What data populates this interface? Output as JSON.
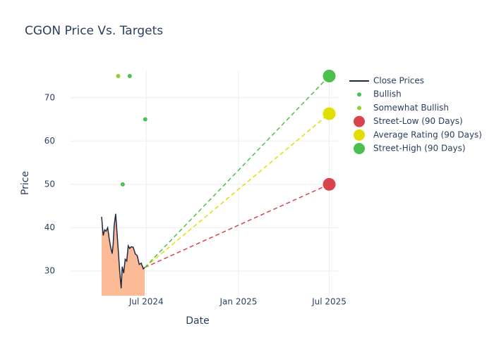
{
  "chart_data": {
    "type": "line",
    "title": "CGON Price Vs. Targets",
    "x_label": "Date",
    "y_label": "Price",
    "xlim": [
      "2024-02-01",
      "2025-07-20"
    ],
    "xticks": [
      {
        "value": "2024-07-01",
        "label": "Jul 2024"
      },
      {
        "value": "2025-01-01",
        "label": "Jan 2025"
      },
      {
        "value": "2025-07-01",
        "label": "Jul 2025"
      }
    ],
    "ylim": [
      24.3,
      76.3
    ],
    "yticks": [
      30,
      40,
      50,
      60,
      70
    ],
    "grid": true,
    "legend": "right",
    "series": [
      {
        "name": "Close Prices",
        "mode": "lines",
        "color": "#1f2a44",
        "fill_color": "#fbbb96",
        "x": [
          "2024-04-03",
          "2024-04-06",
          "2024-04-09",
          "2024-04-12",
          "2024-04-15",
          "2024-04-18",
          "2024-04-21",
          "2024-04-24",
          "2024-04-26",
          "2024-04-28",
          "2024-05-01",
          "2024-05-03",
          "2024-05-06",
          "2024-05-09",
          "2024-05-12",
          "2024-05-14",
          "2024-05-17",
          "2024-05-20",
          "2024-05-23",
          "2024-05-26",
          "2024-05-29",
          "2024-06-01",
          "2024-06-05",
          "2024-06-09",
          "2024-06-13",
          "2024-06-17",
          "2024-06-21",
          "2024-06-25",
          "2024-06-28"
        ],
        "values": [
          42.5,
          38.2,
          39.5,
          39.2,
          40,
          37.5,
          35.5,
          34,
          36.3,
          40.5,
          43.2,
          40,
          35,
          30,
          26,
          31,
          29.5,
          32.7,
          32.3,
          35.8,
          35.2,
          35.6,
          35.5,
          34,
          33.5,
          31.5,
          31.8,
          30.5,
          30.8
        ]
      },
      {
        "name": "Bullish",
        "mode": "markers",
        "color": "#4fbf4f",
        "x": [
          "2024-05-29",
          "2024-06-29",
          "2024-05-15"
        ],
        "values": [
          75,
          65,
          50
        ]
      },
      {
        "name": "Somewhat Bullish",
        "mode": "markers",
        "color": "#8fd135",
        "x": [
          "2024-05-06"
        ],
        "values": [
          75
        ]
      },
      {
        "name": "Street-Low (90 Days)",
        "mode": "target",
        "color": "#d9434b",
        "x": [
          "2024-06-28",
          "2025-07-01"
        ],
        "values": [
          30.8,
          50
        ]
      },
      {
        "name": "Average Rating (90 Days)",
        "mode": "target",
        "color": "#dfdf00",
        "x": [
          "2024-06-28",
          "2025-07-01"
        ],
        "values": [
          30.8,
          66.3
        ]
      },
      {
        "name": "Street-High (90 Days)",
        "mode": "target",
        "color": "#4cc04c",
        "x": [
          "2024-06-28",
          "2025-07-01"
        ],
        "values": [
          30.8,
          75
        ]
      }
    ]
  }
}
